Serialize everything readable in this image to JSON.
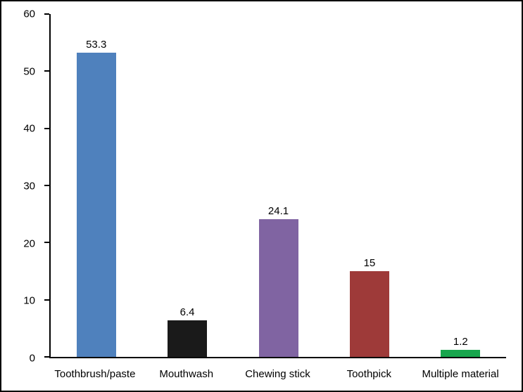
{
  "chart_data": {
    "type": "bar",
    "title": "",
    "xlabel": "",
    "ylabel": "",
    "categories": [
      "Toothbrush/paste",
      "Mouthwash",
      "Chewing stick",
      "Toothpick",
      "Multiple material"
    ],
    "values": [
      53.3,
      6.4,
      24.1,
      15,
      1.2
    ],
    "value_labels": [
      "53.3",
      "6.4",
      "24.1",
      "15",
      "1.2"
    ],
    "bar_colors": [
      "#4f81bd",
      "#1a1a1a",
      "#8064a2",
      "#9e3a39",
      "#17a64d"
    ],
    "ylim": [
      0,
      60
    ],
    "yticks": [
      0,
      10,
      20,
      30,
      40,
      50,
      60
    ],
    "grid": false,
    "legend": false,
    "axis_color": "#000000",
    "background_color": "#ffffff",
    "border_color": "#000000"
  }
}
